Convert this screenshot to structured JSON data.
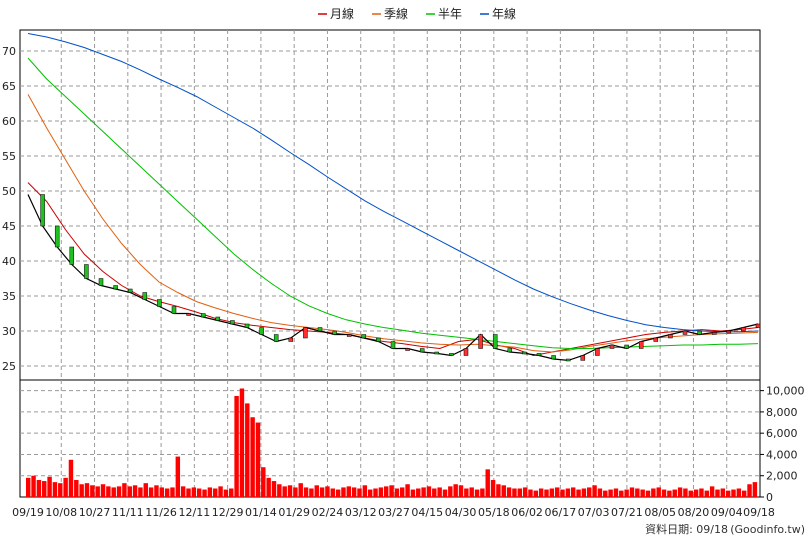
{
  "chart_data": {
    "type": "line",
    "legend": {
      "placement": "top-center",
      "items": [
        {
          "name": "月線",
          "color": "#cc0000"
        },
        {
          "name": "季線",
          "color": "#e06010"
        },
        {
          "name": "半年",
          "color": "#00c000"
        },
        {
          "name": "年線",
          "color": "#0050c8"
        }
      ]
    },
    "price_axis": {
      "ticks": [
        25,
        30,
        35,
        40,
        45,
        50,
        55,
        60,
        65,
        70
      ],
      "ylim": [
        23,
        73
      ]
    },
    "volume_axis": {
      "ticks": [
        "0",
        "2,000",
        "4,000",
        "6,000",
        "8,000",
        "10,000"
      ],
      "tick_values": [
        0,
        2000,
        4000,
        6000,
        8000,
        10000
      ],
      "ylim": [
        0,
        11000
      ]
    },
    "x_ticks": [
      "09/19",
      "10/08",
      "10/27",
      "11/11",
      "11/26",
      "12/11",
      "12/29",
      "01/14",
      "01/29",
      "02/24",
      "03/12",
      "03/27",
      "04/15",
      "04/30",
      "05/18",
      "06/02",
      "06/17",
      "07/03",
      "07/21",
      "08/05",
      "08/20",
      "09/04",
      "09/18"
    ],
    "grid": true,
    "series": [
      {
        "name": "月線",
        "color": "#cc0000",
        "values": [
          51.2,
          48.5,
          44.5,
          41.0,
          38.5,
          36.5,
          35.0,
          34.2,
          33.5,
          32.7,
          31.8,
          31.2,
          30.8,
          30.5,
          30.2,
          30.0,
          29.8,
          29.5,
          29.0,
          28.5,
          28.2,
          27.8,
          27.5,
          28.5,
          28.8,
          28.0,
          27.5,
          26.5,
          27.0,
          27.5,
          28.0,
          28.5,
          29.0,
          29.5,
          29.8,
          30.0,
          30.2,
          30.0,
          30.2,
          30.5
        ]
      },
      {
        "name": "季線",
        "color": "#e06010",
        "values": [
          63.8,
          59.0,
          54.5,
          50.0,
          46.0,
          42.5,
          39.5,
          37.0,
          35.5,
          34.2,
          33.3,
          32.5,
          31.8,
          31.2,
          30.8,
          30.5,
          30.2,
          29.8,
          29.3,
          28.9,
          28.6,
          28.3,
          28.1,
          28.0,
          28.1,
          27.9,
          27.7,
          27.2,
          27.0,
          27.3,
          27.8,
          28.2,
          28.6,
          28.9,
          29.1,
          29.3,
          29.5,
          29.6,
          29.7,
          29.8
        ]
      },
      {
        "name": "半年",
        "color": "#00c000",
        "values": [
          69.0,
          66.0,
          63.5,
          61.0,
          58.5,
          56.0,
          53.5,
          51.0,
          48.5,
          46.0,
          43.5,
          41.0,
          38.8,
          36.8,
          35.0,
          33.6,
          32.5,
          31.6,
          31.0,
          30.5,
          30.1,
          29.7,
          29.4,
          29.1,
          28.8,
          28.5,
          28.2,
          27.9,
          27.6,
          27.5,
          27.5,
          27.6,
          27.7,
          27.8,
          27.9,
          28.0,
          28.0,
          28.1,
          28.1,
          28.2
        ]
      },
      {
        "name": "年線",
        "color": "#0050c8",
        "values": [
          72.5,
          72.0,
          71.3,
          70.5,
          69.5,
          68.5,
          67.3,
          66.0,
          64.8,
          63.5,
          62.0,
          60.5,
          59.0,
          57.3,
          55.5,
          53.8,
          52.0,
          50.3,
          48.6,
          47.1,
          45.7,
          44.3,
          42.9,
          41.5,
          40.1,
          38.7,
          37.3,
          36.0,
          34.9,
          33.9,
          33.0,
          32.2,
          31.5,
          30.9,
          30.5,
          30.2,
          30.0,
          29.9,
          29.9,
          30.0
        ]
      },
      {
        "name": "price",
        "color": "#000000",
        "values": [
          49.5,
          45.0,
          42.0,
          39.5,
          37.5,
          36.5,
          36.0,
          35.5,
          34.5,
          33.5,
          32.5,
          32.5,
          32.0,
          31.5,
          31.0,
          30.5,
          29.5,
          28.5,
          29.0,
          30.5,
          30.0,
          29.5,
          29.5,
          29.0,
          28.5,
          27.5,
          27.5,
          27.0,
          26.8,
          26.5,
          27.5,
          29.5,
          27.5,
          27.0,
          26.8,
          26.5,
          26.0,
          25.8,
          26.5,
          27.5,
          28.0,
          27.5,
          28.5,
          29.0,
          29.5,
          30.0,
          29.5,
          29.8,
          30.0,
          30.5,
          31.0
        ]
      }
    ],
    "volume": [
      1800,
      2000,
      1600,
      1500,
      1900,
      1400,
      1300,
      1800,
      3500,
      1600,
      1200,
      1300,
      1100,
      1000,
      1200,
      1000,
      900,
      1000,
      1300,
      1000,
      1100,
      900,
      1300,
      900,
      1100,
      900,
      800,
      900,
      3800,
      1000,
      800,
      900,
      800,
      700,
      900,
      800,
      1000,
      700,
      800,
      9500,
      10200,
      8800,
      7500,
      7000,
      2800,
      1800,
      1500,
      1200,
      1000,
      1100,
      900,
      1300,
      900,
      800,
      1100,
      900,
      1000,
      800,
      700,
      900,
      1000,
      900,
      800,
      1100,
      700,
      800,
      900,
      1000,
      1100,
      800,
      900,
      1200,
      700,
      800,
      900,
      1000,
      800,
      900,
      700,
      1000,
      1200,
      1100,
      800,
      900,
      700,
      800,
      2600,
      1600,
      1200,
      1100,
      900,
      800,
      800,
      900,
      700,
      600,
      800,
      700,
      800,
      900,
      700,
      800,
      900,
      700,
      800,
      900,
      1100,
      800,
      600,
      700,
      800,
      600,
      700,
      900,
      800,
      700,
      600,
      800,
      900,
      700,
      600,
      700,
      900,
      800,
      600,
      700,
      800,
      600,
      1000,
      700,
      800,
      600,
      700,
      800,
      600,
      1200,
      1400
    ]
  },
  "footer": {
    "label": "資料日期: 09/18",
    "source": "(Goodinfo.tw)"
  }
}
